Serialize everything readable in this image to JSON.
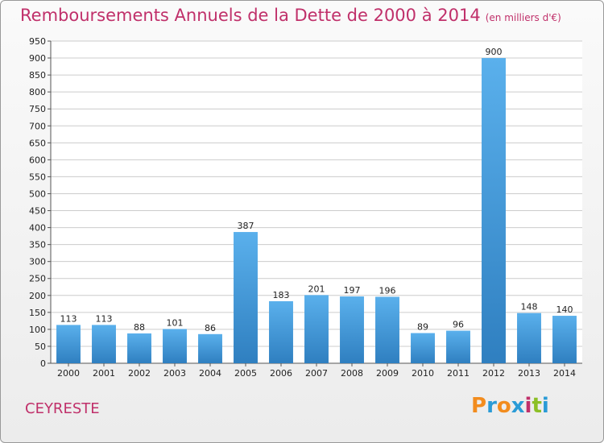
{
  "title": "Remboursements Annuels de la Dette de 2000 à 2014",
  "unit": "(en milliers d'€)",
  "commune": "CEYRESTE",
  "logo": {
    "text": "Proxiti",
    "letters": [
      {
        "ch": "P",
        "color": "#f28c1e"
      },
      {
        "ch": "r",
        "color": "#2a9bd6"
      },
      {
        "ch": "o",
        "color": "#f28c1e"
      },
      {
        "ch": "x",
        "color": "#2a9bd6"
      },
      {
        "ch": "i",
        "color": "#c0306a"
      },
      {
        "ch": "t",
        "color": "#8cbf26"
      },
      {
        "ch": "i",
        "color": "#2a9bd6"
      }
    ]
  },
  "colors": {
    "bar_light": "#5ab0ec",
    "bar_dark": "#2f7fc0",
    "title": "#c0306a",
    "grid": "#cccccc"
  },
  "chart_data": {
    "type": "bar",
    "categories": [
      "2000",
      "2001",
      "2002",
      "2003",
      "2004",
      "2005",
      "2006",
      "2007",
      "2008",
      "2009",
      "2010",
      "2011",
      "2012",
      "2013",
      "2014"
    ],
    "values": [
      113,
      113,
      88,
      101,
      86,
      387,
      183,
      201,
      197,
      196,
      89,
      96,
      900,
      148,
      140
    ],
    "ylim": [
      0,
      950
    ],
    "yticks": [
      0,
      50,
      100,
      150,
      200,
      250,
      300,
      350,
      400,
      450,
      500,
      550,
      600,
      650,
      700,
      750,
      800,
      850,
      900,
      950
    ],
    "grid": true,
    "legend": "none"
  }
}
